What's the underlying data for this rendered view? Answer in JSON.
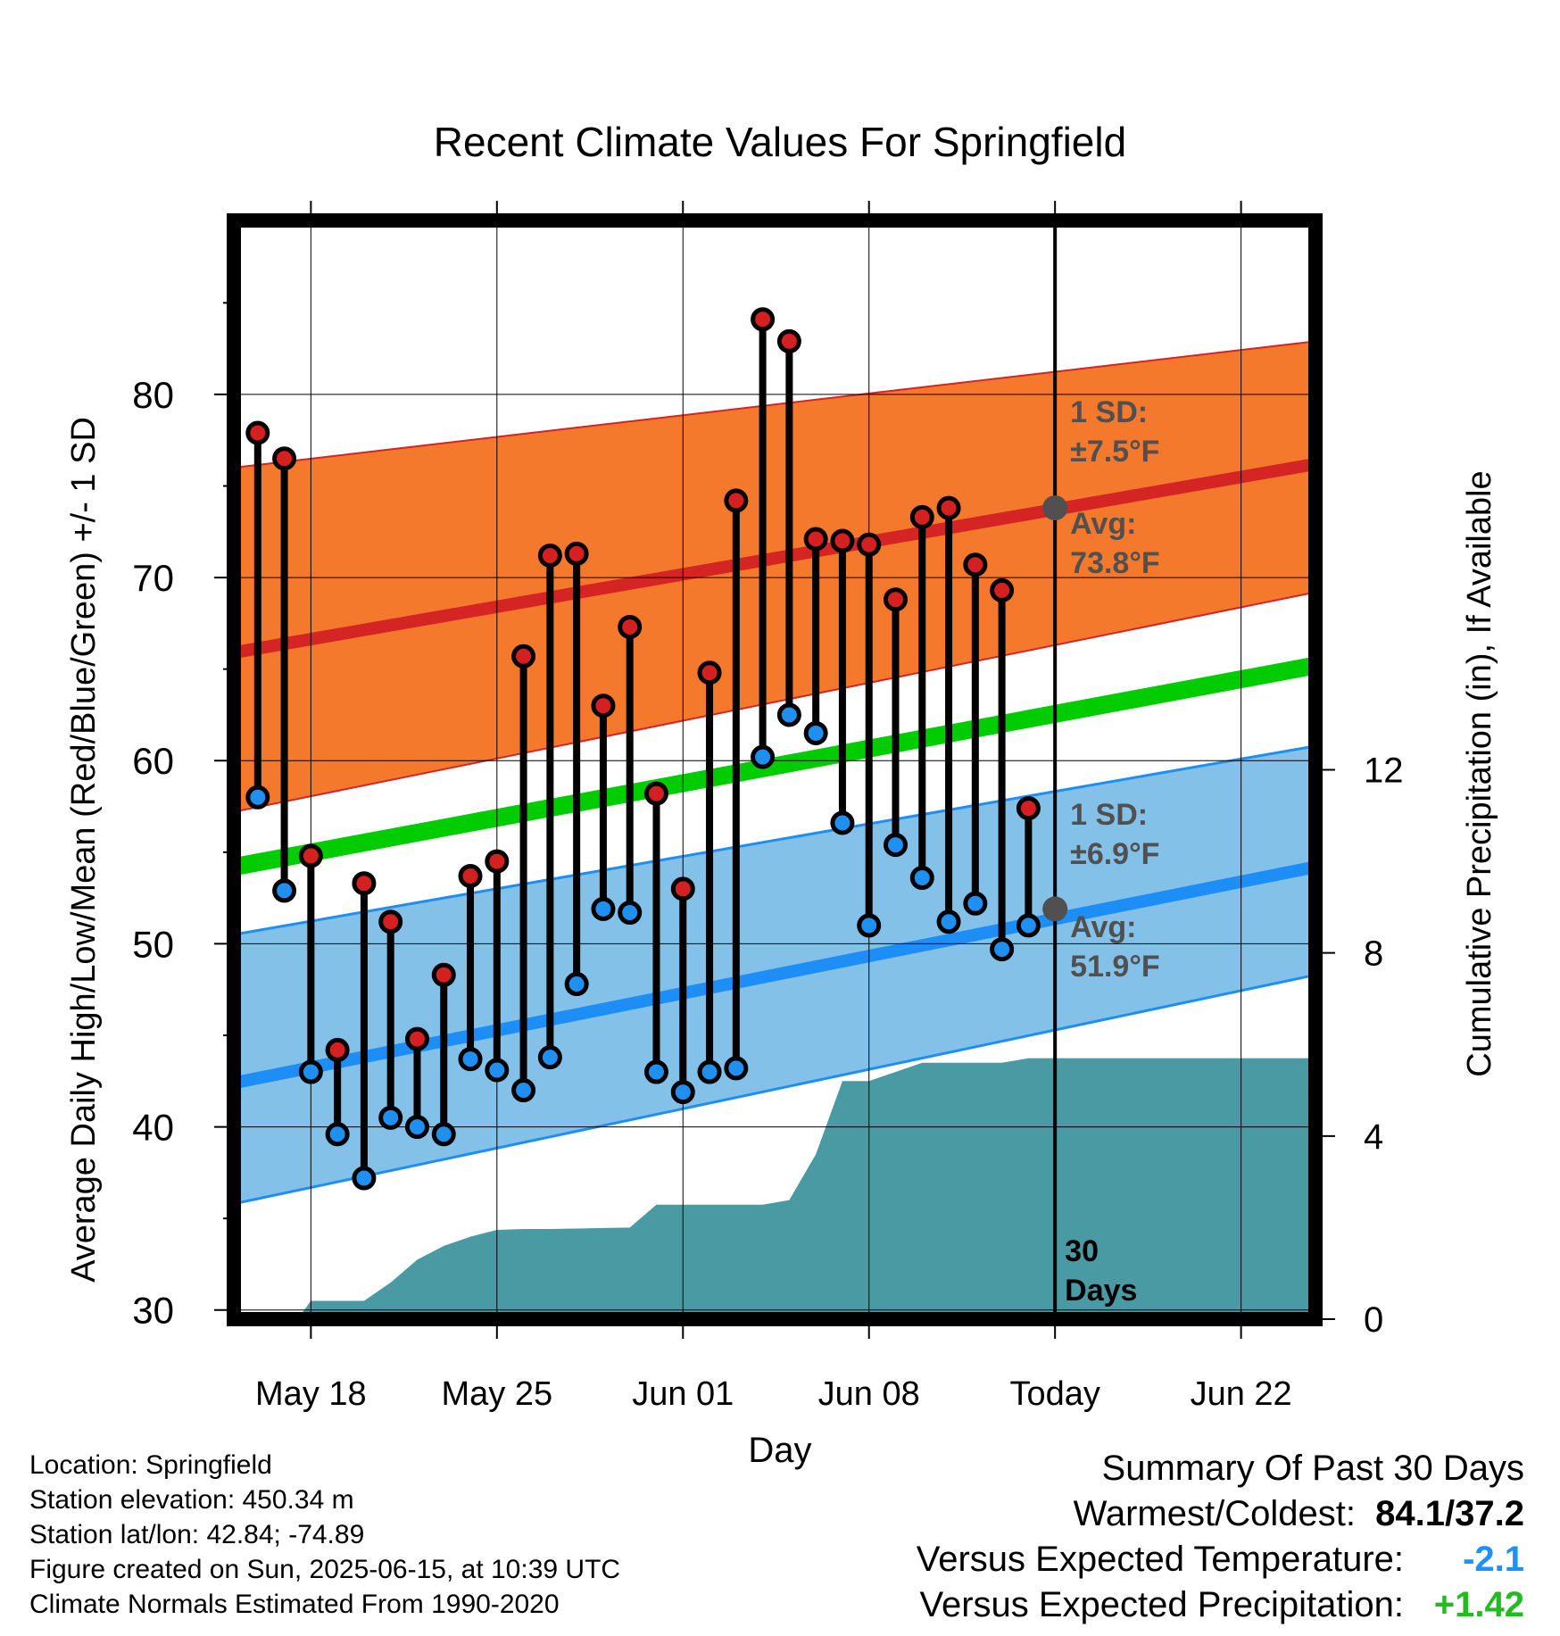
{
  "chart_data": {
    "type": "line",
    "title": "Recent Climate Values For Springfield",
    "xlabel": "Day",
    "ylabel_left": "Average Daily High/Low/Mean (Red/Blue/Green) +/- 1 SD",
    "ylabel_right": "Cumulative Precipitation (in), If Available",
    "x_tick_labels": [
      "May 18",
      "May 25",
      "Jun 01",
      "Jun 08",
      "Today",
      "Jun 22"
    ],
    "x_tick_days": [
      2,
      9,
      16,
      23,
      30,
      37
    ],
    "y_left_ticks": [
      "30",
      "40",
      "50",
      "60",
      "70",
      "80"
    ],
    "y_left_range": [
      29.5,
      89.5
    ],
    "y_right_ticks": [
      "0",
      "4",
      "8",
      "12"
    ],
    "y_right_range": [
      0,
      24
    ],
    "day_range": [
      -0.9,
      39.8
    ],
    "today_day": 30,
    "normals": {
      "high_avg": [
        [
          -0.9,
          65.9
        ],
        [
          39.8,
          76.2
        ]
      ],
      "high_upper": [
        [
          -0.9,
          76.0
        ],
        [
          39.8,
          82.9
        ]
      ],
      "high_lower": [
        [
          -0.9,
          57.2
        ],
        [
          39.8,
          69.2
        ]
      ],
      "mean_avg": [
        [
          -0.9,
          54.2
        ],
        [
          39.8,
          65.2
        ]
      ],
      "low_avg": [
        [
          -0.9,
          42.4
        ],
        [
          39.8,
          54.2
        ]
      ],
      "low_upper": [
        [
          -0.9,
          50.5
        ],
        [
          39.8,
          60.8
        ]
      ],
      "low_lower": [
        [
          -0.9,
          35.8
        ],
        [
          39.8,
          48.3
        ]
      ]
    },
    "daily": {
      "days": [
        0,
        1,
        2,
        3,
        4,
        5,
        6,
        7,
        8,
        9,
        10,
        11,
        12,
        13,
        14,
        15,
        16,
        17,
        18,
        19,
        20,
        21,
        22,
        23,
        24,
        25,
        26,
        27,
        28,
        29
      ],
      "highs": [
        77.9,
        76.5,
        54.8,
        44.2,
        53.3,
        51.2,
        44.8,
        48.3,
        53.7,
        54.5,
        65.7,
        71.2,
        71.3,
        63.0,
        67.3,
        58.2,
        53.0,
        64.8,
        74.2,
        84.1,
        82.9,
        72.1,
        72.0,
        71.8,
        68.8,
        73.3,
        73.8,
        70.7,
        69.3,
        57.4
      ],
      "lows": [
        58.0,
        52.9,
        43.0,
        39.6,
        37.2,
        40.5,
        40.0,
        39.6,
        43.7,
        43.1,
        42.0,
        43.8,
        47.8,
        51.9,
        51.7,
        43.0,
        41.9,
        43.0,
        43.2,
        60.2,
        62.5,
        61.5,
        56.6,
        51.0,
        55.4,
        53.6,
        51.2,
        52.2,
        49.7,
        51.0
      ]
    },
    "precip_cumulative": [
      [
        -0.9,
        0
      ],
      [
        0.5,
        0
      ],
      [
        1.5,
        0
      ],
      [
        2,
        0.4
      ],
      [
        3,
        0.4
      ],
      [
        4,
        0.4
      ],
      [
        5,
        0.8
      ],
      [
        6,
        1.3
      ],
      [
        7,
        1.6
      ],
      [
        8,
        1.8
      ],
      [
        9,
        1.95
      ],
      [
        10,
        1.97
      ],
      [
        11,
        1.97
      ],
      [
        12,
        1.98
      ],
      [
        13,
        1.99
      ],
      [
        14,
        2.0
      ],
      [
        15,
        2.5
      ],
      [
        16,
        2.5
      ],
      [
        17,
        2.5
      ],
      [
        18,
        2.5
      ],
      [
        19,
        2.5
      ],
      [
        20,
        2.6
      ],
      [
        21,
        3.6
      ],
      [
        22,
        5.2
      ],
      [
        23,
        5.2
      ],
      [
        24,
        5.4
      ],
      [
        25,
        5.6
      ],
      [
        26,
        5.6
      ],
      [
        27,
        5.6
      ],
      [
        28,
        5.6
      ],
      [
        29,
        5.7
      ],
      [
        30,
        5.7
      ],
      [
        39.8,
        5.7
      ]
    ],
    "annotations": {
      "high_sd_line1": "1 SD:",
      "high_sd_line2": "±7.5°F",
      "high_avg_line1": "Avg:",
      "high_avg_line2": "73.8°F",
      "high_avg_value": 73.8,
      "low_sd_line1": "1 SD:",
      "low_sd_line2": "±6.9°F",
      "low_avg_line1": "Avg:",
      "low_avg_line2": "51.9°F",
      "low_avg_value": 51.9,
      "days_line1": "30",
      "days_line2": "Days"
    },
    "colors": {
      "high_band": "#f5792c",
      "high_line": "#d42424",
      "low_band": "#84c1e8",
      "low_line": "#1e8ef7",
      "mean_line": "#00cc00",
      "precip": "#4a9aa3",
      "high_dot": "#d42020",
      "low_dot": "#2090f0",
      "annotation": "#505050"
    },
    "grid": true
  },
  "info": {
    "location": "Location: Springfield",
    "elevation": "Station elevation: 450.34 m",
    "latlon": "Station lat/lon: 42.84; -74.89",
    "created": "Figure created on Sun, 2025-06-15, at 10:39 UTC",
    "normals_note": "Climate Normals Estimated From 1990-2020"
  },
  "summary": {
    "heading": "Summary Of Past 30 Days",
    "warmest_label": "Warmest/Coldest:",
    "warmest_value": "84.1/37.2",
    "temp_label": "Versus Expected Temperature:",
    "temp_value": "-2.1",
    "precip_label": "Versus Expected Precipitation:",
    "precip_value": "+1.42"
  }
}
